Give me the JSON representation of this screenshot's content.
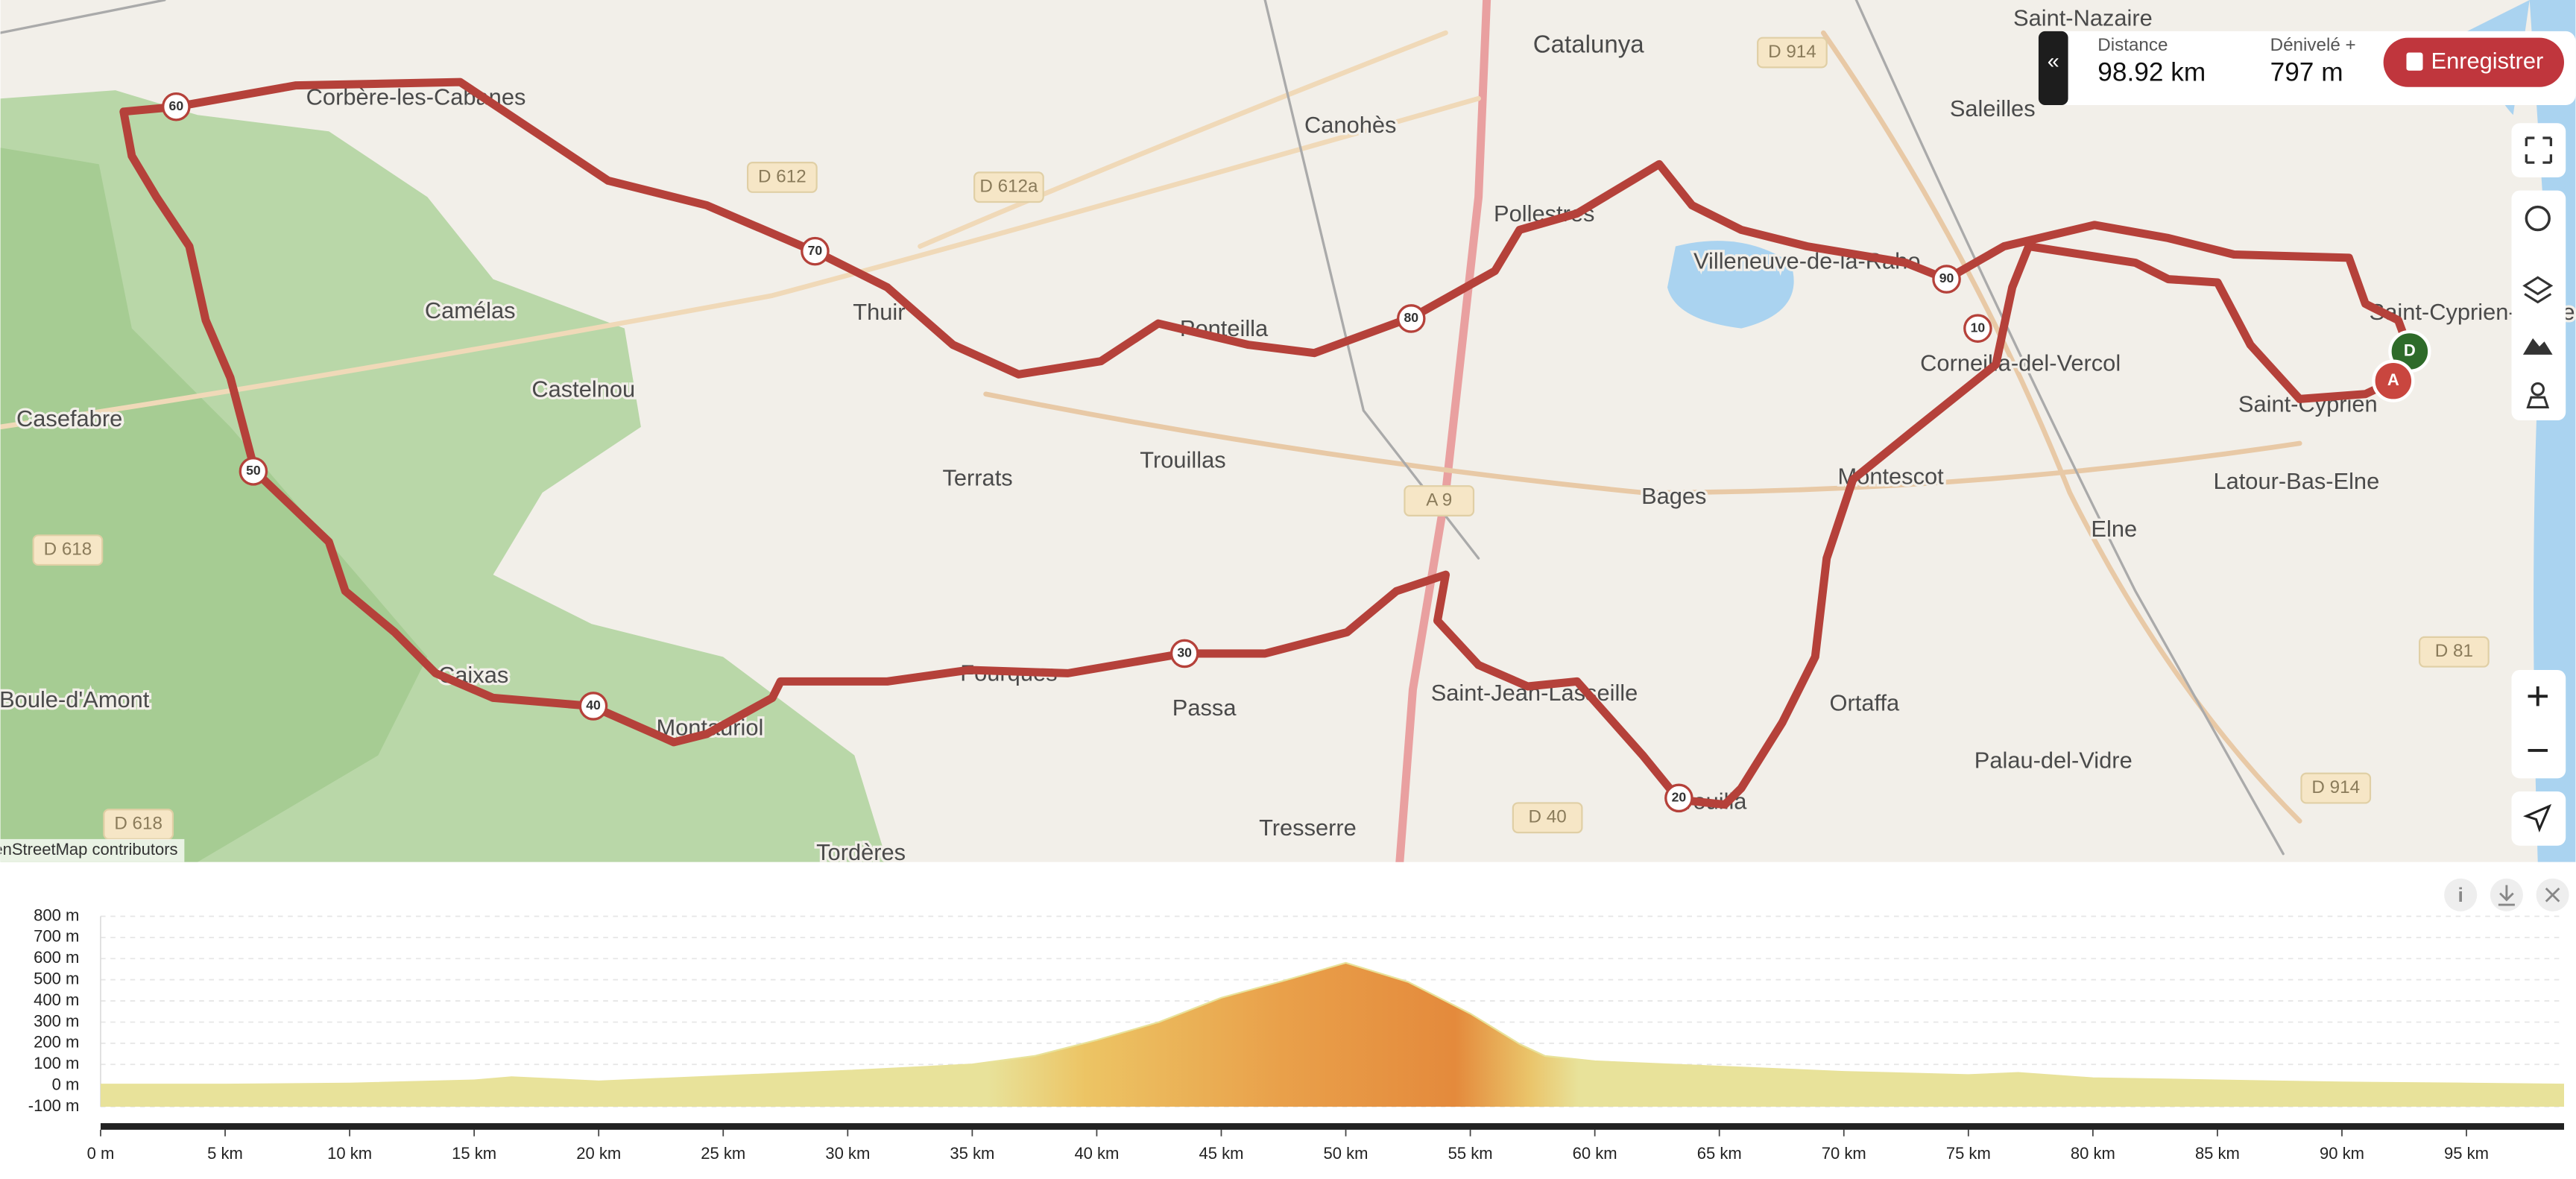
{
  "map": {
    "places": [
      "Catalunya",
      "Canohès",
      "Saleilles",
      "Saint-Nazaire",
      "Corbère-les-Cabanes",
      "Camélas",
      "Castelnou",
      "Casefabre",
      "Thuir",
      "Ponteilla",
      "Pollestres",
      "Villeneuve-de-la-Raho",
      "Corneilla-del-Vercol",
      "Saint-Cyprien",
      "Saint-Cyprien-Plage",
      "Latour-Bas-Elne",
      "Elne",
      "Bages",
      "Montescot",
      "Terrats",
      "Trouillas",
      "Passa",
      "Tresserre",
      "Saint-Jean-Lasseille",
      "Ortaffa",
      "Palau-del-Vidre",
      "Brouilla",
      "Fourques",
      "Caixas",
      "Montauriol",
      "Tordères",
      "Boule-d'Amont"
    ],
    "roads": [
      "D 612",
      "D 612a",
      "D 914",
      "D 618",
      "A 9",
      "D 40",
      "D 81",
      "D 914",
      "D 618"
    ],
    "km_markers": [
      "10",
      "20",
      "30",
      "40",
      "50",
      "60",
      "70",
      "80",
      "90"
    ],
    "start_label": "D",
    "end_label": "A",
    "attribution": "© OpenStreetMap contributors"
  },
  "stats": {
    "distance_label": "Distance",
    "distance": "98.92 km",
    "elevation_label": "Dénivelé +",
    "elevation": "797 m",
    "save_button": "Enregistrer"
  },
  "chart_data": {
    "type": "area",
    "x": [
      0,
      5,
      10,
      15,
      16.5,
      20,
      25,
      30,
      35,
      37.5,
      40,
      42.5,
      45,
      47.5,
      50,
      52.5,
      55,
      57,
      58,
      60,
      65,
      70,
      75,
      77,
      80,
      85,
      90,
      95,
      98.92
    ],
    "values": [
      5,
      5,
      10,
      25,
      40,
      20,
      45,
      70,
      100,
      140,
      215,
      300,
      415,
      495,
      580,
      490,
      340,
      195,
      140,
      115,
      90,
      65,
      50,
      60,
      35,
      25,
      15,
      10,
      5
    ],
    "color": "#e8e29a",
    "xlim": [
      0,
      98.92
    ],
    "ylim": [
      -100,
      800
    ],
    "xticks": [
      {
        "value": 0,
        "label": "0 m"
      },
      {
        "value": 5,
        "label": "5 km"
      },
      {
        "value": 10,
        "label": "10 km"
      },
      {
        "value": 15,
        "label": "15 km"
      },
      {
        "value": 20,
        "label": "20 km"
      },
      {
        "value": 25,
        "label": "25 km"
      },
      {
        "value": 30,
        "label": "30 km"
      },
      {
        "value": 35,
        "label": "35 km"
      },
      {
        "value": 40,
        "label": "40 km"
      },
      {
        "value": 45,
        "label": "45 km"
      },
      {
        "value": 50,
        "label": "50 km"
      },
      {
        "value": 55,
        "label": "55 km"
      },
      {
        "value": 60,
        "label": "60 km"
      },
      {
        "value": 65,
        "label": "65 km"
      },
      {
        "value": 70,
        "label": "70 km"
      },
      {
        "value": 75,
        "label": "75 km"
      },
      {
        "value": 80,
        "label": "80 km"
      },
      {
        "value": 85,
        "label": "85 km"
      },
      {
        "value": 90,
        "label": "90 km"
      },
      {
        "value": 95,
        "label": "95 km"
      }
    ],
    "yticks": [
      {
        "value": 800,
        "label": "800 m"
      },
      {
        "value": 700,
        "label": "700 m"
      },
      {
        "value": 600,
        "label": "600 m"
      },
      {
        "value": 500,
        "label": "500 m"
      },
      {
        "value": 400,
        "label": "400 m"
      },
      {
        "value": 300,
        "label": "300 m"
      },
      {
        "value": 200,
        "label": "200 m"
      },
      {
        "value": 100,
        "label": "100 m"
      },
      {
        "value": 0,
        "label": "0 m"
      },
      {
        "value": -100,
        "label": "-100 m"
      }
    ],
    "grid": true
  }
}
